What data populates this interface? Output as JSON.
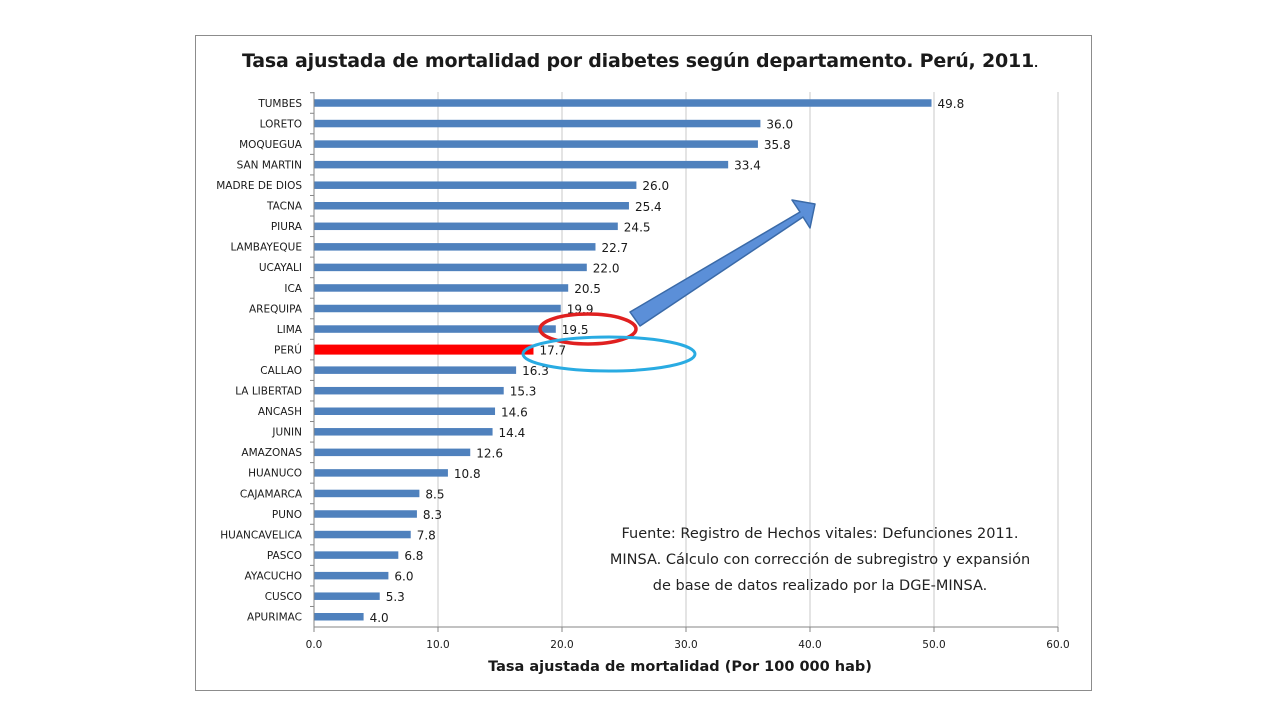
{
  "chart_data": {
    "type": "bar",
    "orientation": "horizontal",
    "title": "Tasa ajustada de mortalidad por diabetes según departamento. Perú, 2011",
    "title_suffix": ".",
    "xlabel": "Tasa ajustada de mortalidad (Por 100 000 hab)",
    "ylabel": "",
    "xlim": [
      0,
      60
    ],
    "xticks": [
      "0.0",
      "10.0",
      "20.0",
      "30.0",
      "40.0",
      "50.0",
      "60.0"
    ],
    "xtick_values": [
      0,
      10,
      20,
      30,
      40,
      50,
      60
    ],
    "grid": "vertical",
    "legend": "none",
    "categories": [
      "TUMBES",
      "LORETO",
      "MOQUEGUA",
      "SAN MARTIN",
      "MADRE DE DIOS",
      "TACNA",
      "PIURA",
      "LAMBAYEQUE",
      "UCAYALI",
      "ICA",
      "AREQUIPA",
      "LIMA",
      "PERÚ",
      "CALLAO",
      "LA LIBERTAD",
      "ANCASH",
      "JUNIN",
      "AMAZONAS",
      "HUANUCO",
      "CAJAMARCA",
      "PUNO",
      "HUANCAVELICA",
      "PASCO",
      "AYACUCHO",
      "CUSCO",
      "APURIMAC"
    ],
    "values": [
      49.8,
      36.0,
      35.8,
      33.4,
      26.0,
      25.4,
      24.5,
      22.7,
      22.0,
      20.5,
      19.9,
      19.5,
      17.7,
      16.3,
      15.3,
      14.6,
      14.4,
      12.6,
      10.8,
      8.5,
      8.3,
      7.8,
      6.8,
      6.0,
      5.3,
      4.0
    ],
    "value_labels": [
      "49.8",
      "36.0",
      "35.8",
      "33.4",
      "26.0",
      "25.4",
      "24.5",
      "22.7",
      "22.0",
      "20.5",
      "19.9",
      "19.5",
      "17.7",
      "16.3",
      "15.3",
      "14.6",
      "14.4",
      "12.6",
      "10.8",
      "8.5",
      "8.3",
      "7.8",
      "6.8",
      "6.0",
      "5.3",
      "4.0"
    ],
    "highlight_category": "PERÚ",
    "colors": {
      "bar": "#4f81bd",
      "highlight_bar": "#ff0000",
      "grid": "#c8c8c8",
      "axis": "#868686",
      "arrow_fill": "#5b8fd8",
      "arrow_stroke": "#3a6aa8",
      "red_ellipse": "#e02020",
      "blue_ellipse": "#29abe2"
    }
  },
  "annotations": {
    "source_note_lines": [
      "Fuente: Registro de Hechos vitales: Defunciones 2011.",
      "MINSA. Cálculo con corrección de subregistro y expansión",
      "de base de datos realizado por la DGE-MINSA."
    ],
    "shapes": [
      "arrow-up-right",
      "red-ellipse-around-lima-value",
      "blue-ellipse-around-peru-value"
    ]
  }
}
